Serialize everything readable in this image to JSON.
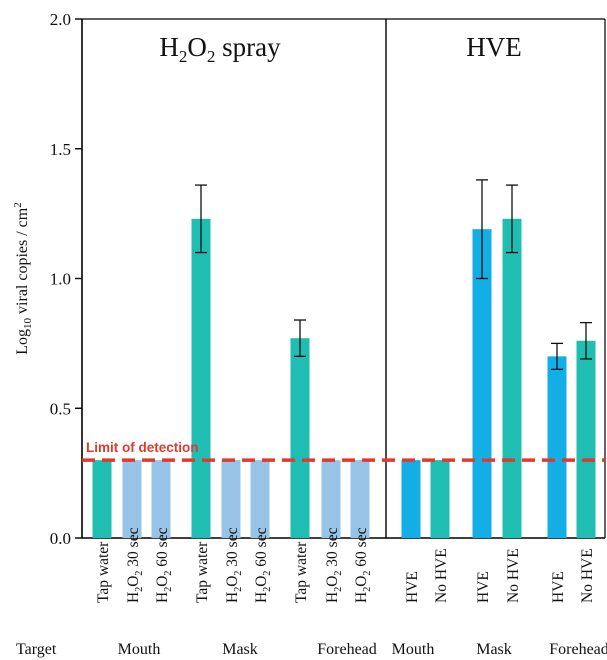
{
  "chart_data": {
    "type": "bar",
    "ylabel_main": "Log",
    "ylabel_sub": "10",
    "ylabel_rest": " viral copies / cm",
    "ylabel_sup": "2",
    "ylim": [
      0,
      2.0
    ],
    "yticks": [
      "0.0",
      "0.5",
      "1.0",
      "1.5",
      "2.0"
    ],
    "ytick_values": [
      0,
      0.5,
      1.0,
      1.5,
      2.0
    ],
    "grid": false,
    "limit_of_detection": {
      "label": "Limit of detection",
      "value": 0.3,
      "color": "#e03a2f"
    },
    "target_label": "Target",
    "colors": {
      "teal": "#20bdb2",
      "light_blue": "#97c3e6",
      "blue": "#13aee6"
    },
    "panels": [
      {
        "title_parts": [
          "H",
          "2",
          "O",
          "2",
          " spray"
        ],
        "bars": [
          {
            "label": "Tap water",
            "value": 0.3,
            "error": null,
            "color": "teal"
          },
          {
            "label": "H2O2 30 sec",
            "value": 0.3,
            "error": null,
            "color": "light_blue"
          },
          {
            "label": "H2O2 60 sec",
            "value": 0.3,
            "error": null,
            "color": "light_blue"
          },
          {
            "label": "Tap water",
            "value": 1.23,
            "error": 0.13,
            "color": "teal"
          },
          {
            "label": "H2O2 30 sec",
            "value": 0.3,
            "error": null,
            "color": "light_blue"
          },
          {
            "label": "H2O2 60 sec",
            "value": 0.3,
            "error": null,
            "color": "light_blue"
          },
          {
            "label": "Tap water",
            "value": 0.77,
            "error": 0.07,
            "color": "teal"
          },
          {
            "label": "H2O2 30 sec",
            "value": 0.3,
            "error": null,
            "color": "light_blue"
          },
          {
            "label": "H2O2 60 sec",
            "value": 0.3,
            "error": null,
            "color": "light_blue"
          }
        ],
        "groups": [
          "Mouth",
          "Mask",
          "Forehead"
        ]
      },
      {
        "title_parts": [
          "HVE"
        ],
        "bars": [
          {
            "label": "HVE",
            "value": 0.3,
            "error": null,
            "color": "blue"
          },
          {
            "label": "No HVE",
            "value": 0.3,
            "error": null,
            "color": "teal"
          },
          {
            "label": "HVE",
            "value": 1.19,
            "error": 0.19,
            "color": "blue"
          },
          {
            "label": "No HVE",
            "value": 1.23,
            "error": 0.13,
            "color": "teal"
          },
          {
            "label": "HVE",
            "value": 0.7,
            "error": 0.05,
            "color": "blue"
          },
          {
            "label": "No HVE",
            "value": 0.76,
            "error": 0.07,
            "color": "teal"
          }
        ],
        "groups": [
          "Mouth",
          "Mask",
          "Forehead"
        ]
      }
    ]
  }
}
